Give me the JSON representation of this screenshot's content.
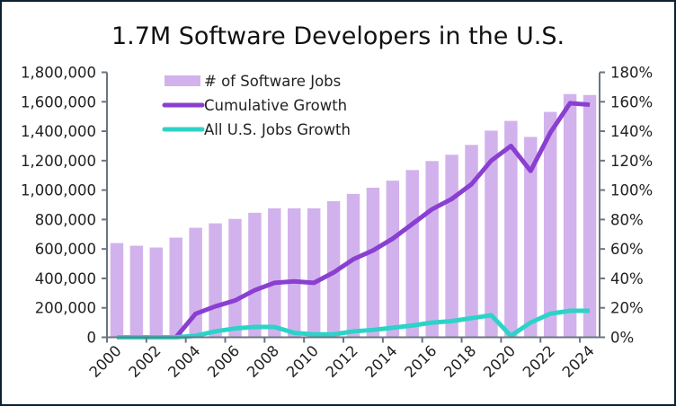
{
  "chart_data": {
    "type": "bar+line",
    "title": "1.7M Software Developers in the U.S.",
    "xlabel": "",
    "ylabel": "",
    "categories": [
      "2000",
      "2001",
      "2002",
      "2003",
      "2004",
      "2005",
      "2006",
      "2007",
      "2008",
      "2009",
      "2010",
      "2011",
      "2012",
      "2013",
      "2014",
      "2015",
      "2016",
      "2017",
      "2018",
      "2019",
      "2020",
      "2021",
      "2022",
      "2023",
      "2024"
    ],
    "x_tick_labels": [
      "2000",
      "2002",
      "2004",
      "2006",
      "2008",
      "2010",
      "2012",
      "2014",
      "2016",
      "2018",
      "2020",
      "2022",
      "2024"
    ],
    "y_left": {
      "range": [
        0,
        1800000
      ],
      "ticks": [
        "0",
        "200,000",
        "400,000",
        "600,000",
        "800,000",
        "1,000,000",
        "1,200,000",
        "1,400,000",
        "1,600,000",
        "1,800,000"
      ],
      "tick_values": [
        0,
        200000,
        400000,
        600000,
        800000,
        1000000,
        1200000,
        1400000,
        1600000,
        1800000
      ]
    },
    "y_right": {
      "range": [
        0,
        180
      ],
      "unit": "%",
      "ticks": [
        "0%",
        "20%",
        "40%",
        "60%",
        "80%",
        "100%",
        "120%",
        "140%",
        "160%",
        "180%"
      ],
      "tick_values": [
        0,
        20,
        40,
        60,
        80,
        100,
        120,
        140,
        160,
        180
      ]
    },
    "grid": false,
    "legend_position": "top-left",
    "series": [
      {
        "name": "# of Software Jobs",
        "type": "bar",
        "axis": "left",
        "color": "#d2b2ec",
        "values": [
          640000,
          622000,
          610000,
          677000,
          744000,
          774000,
          804000,
          846000,
          876000,
          876000,
          876000,
          925000,
          974000,
          1016000,
          1064000,
          1136000,
          1197000,
          1240000,
          1307000,
          1404000,
          1470000,
          1361000,
          1531000,
          1652000,
          1646000
        ]
      },
      {
        "name": "Cumulative Growth",
        "type": "line",
        "axis": "right",
        "color": "#8a3fd1",
        "values": [
          null,
          null,
          null,
          0,
          16,
          21,
          25,
          32,
          37,
          38,
          37,
          44,
          53,
          59,
          67,
          77,
          87,
          94,
          104,
          120,
          130,
          113,
          139,
          159,
          158
        ]
      },
      {
        "name": "All U.S. Jobs Growth",
        "type": "line",
        "axis": "right",
        "color": "#2cd3c8",
        "values": [
          0,
          0,
          0,
          0,
          1,
          4,
          6,
          7,
          7,
          3,
          2,
          2,
          4,
          5,
          6.5,
          8,
          10,
          11,
          13,
          15,
          1,
          10,
          16,
          18,
          18
        ]
      }
    ]
  }
}
